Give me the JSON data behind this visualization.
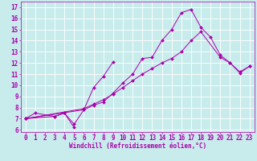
{
  "xlabel": "Windchill (Refroidissement éolien,°C)",
  "xlim": [
    -0.5,
    23.5
  ],
  "ylim": [
    5.8,
    17.5
  ],
  "xticks": [
    0,
    1,
    2,
    3,
    4,
    5,
    6,
    7,
    8,
    9,
    10,
    11,
    12,
    13,
    14,
    15,
    16,
    17,
    18,
    19,
    20,
    21,
    22,
    23
  ],
  "yticks": [
    6,
    7,
    8,
    9,
    10,
    11,
    12,
    13,
    14,
    15,
    16,
    17
  ],
  "bg_color": "#c8ecec",
  "line_color": "#aa00aa",
  "grid_color": "#ffffff",
  "series1_x": [
    0,
    1,
    3,
    4,
    5
  ],
  "series1_y": [
    7.0,
    7.5,
    7.2,
    7.5,
    6.2
  ],
  "series2_x": [
    0,
    3,
    4,
    5,
    6,
    7,
    8,
    9
  ],
  "series2_y": [
    7.0,
    7.2,
    7.5,
    6.5,
    7.8,
    9.8,
    10.8,
    12.1
  ],
  "series3_x": [
    0,
    6,
    7,
    8,
    9,
    10,
    11,
    12,
    13,
    14,
    15,
    16,
    17,
    18,
    20,
    21,
    22,
    23
  ],
  "series3_y": [
    7.0,
    7.9,
    8.3,
    8.7,
    9.2,
    9.8,
    10.4,
    11.0,
    11.5,
    12.0,
    12.4,
    13.0,
    14.0,
    14.8,
    12.5,
    12.0,
    11.2,
    11.7
  ],
  "series4_x": [
    0,
    6,
    7,
    8,
    9,
    10,
    11,
    12,
    13,
    14,
    15,
    16,
    17,
    18,
    19,
    20,
    21,
    22,
    23
  ],
  "series4_y": [
    7.0,
    7.8,
    8.2,
    8.5,
    9.3,
    10.2,
    11.0,
    12.4,
    12.5,
    14.0,
    15.0,
    16.5,
    16.8,
    15.2,
    14.3,
    12.7,
    12.0,
    11.1,
    11.7
  ],
  "tick_fontsize": 5.5,
  "xlabel_fontsize": 5.5,
  "line_width": 0.7,
  "marker_size": 2.0
}
